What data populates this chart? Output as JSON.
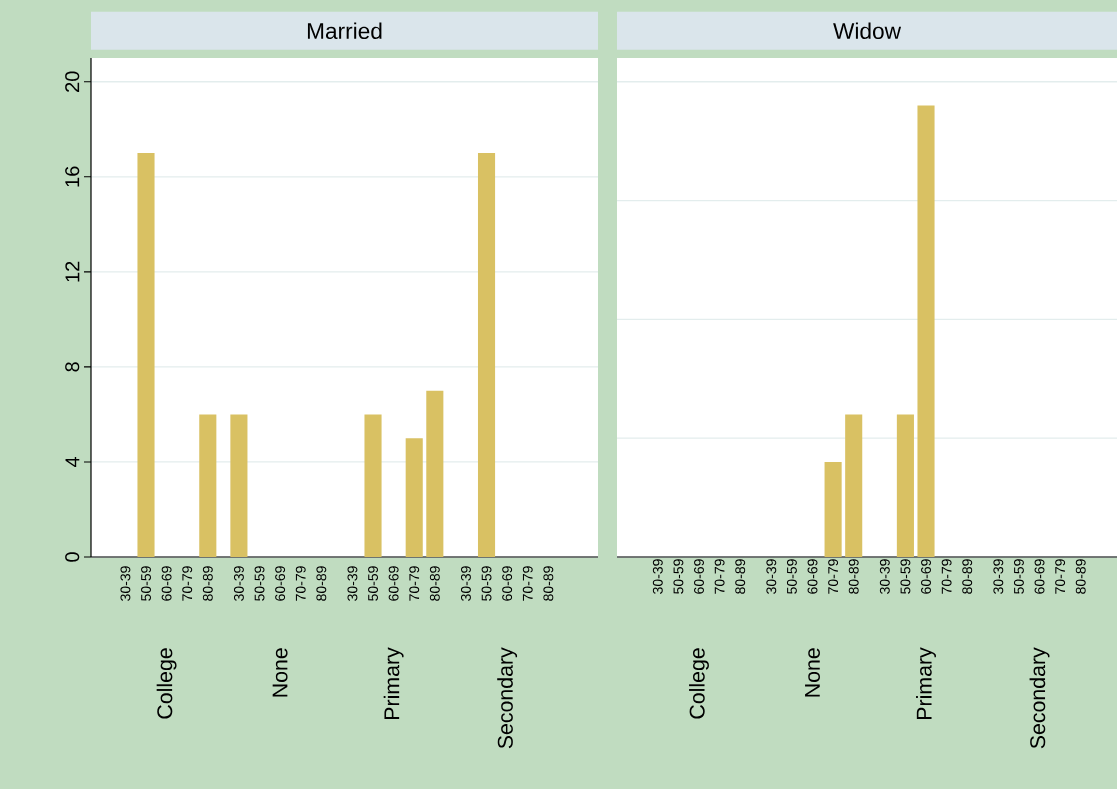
{
  "chart_data": [
    {
      "type": "bar",
      "title": "Married",
      "categories": [
        "30-39",
        "50-59",
        "60-69",
        "70-79",
        "80-89",
        "30-39",
        "50-59",
        "60-69",
        "70-79",
        "80-89",
        "30-39",
        "50-59",
        "60-69",
        "70-79",
        "80-89",
        "30-39",
        "50-59",
        "60-69",
        "70-79",
        "80-89"
      ],
      "values": [
        0,
        17,
        0,
        0,
        6,
        6,
        0,
        0,
        0,
        0,
        0,
        6,
        0,
        5,
        7,
        0,
        17,
        0,
        0,
        0
      ],
      "color": "#d9c163",
      "ylim": [
        0,
        21
      ],
      "yticks": [
        0,
        4,
        8,
        12,
        16,
        20
      ],
      "grid": "y",
      "annotations": [
        "College",
        "None",
        "Primary",
        "Secondary"
      ]
    },
    {
      "type": "bar",
      "title": "Widow",
      "categories": [
        "30-39",
        "50-59",
        "60-69",
        "70-79",
        "80-89",
        "30-39",
        "50-59",
        "60-69",
        "70-79",
        "80-89",
        "30-39",
        "50-59",
        "60-69",
        "70-79",
        "80-89",
        "30-39",
        "50-59",
        "60-69",
        "70-79",
        "80-89"
      ],
      "values": [
        0,
        0,
        0,
        0,
        0,
        0,
        0,
        0,
        4,
        6,
        0,
        6,
        19,
        0,
        0,
        0,
        0,
        0,
        0,
        0
      ],
      "color": "#d9c163",
      "ylim": [
        0,
        21
      ],
      "yticks": [
        {
          "value": 0,
          "label": null
        },
        {
          "value": 5,
          "label": null
        },
        {
          "value": 10,
          "label": null
        },
        {
          "value": 15,
          "label": null
        },
        {
          "value": 20,
          "label": null
        }
      ],
      "grid": "y",
      "tick_labels": "x",
      "annotations": [
        "College",
        "None",
        "Primary",
        "Secondary"
      ]
    }
  ]
}
